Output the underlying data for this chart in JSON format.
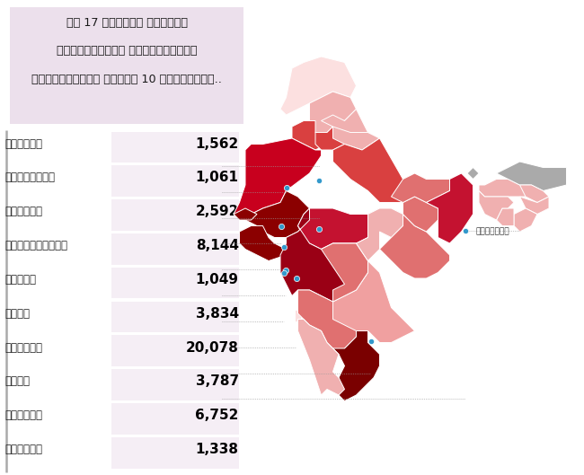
{
  "title_lines": [
    "మే 17 నాటికి దేశంలో",
    "అత్యధికంగా కరోనావైరస్",
    "వ్యాపించిన మొదటి 10 జిల్లాలు.."
  ],
  "districts": [
    {
      "name": "జైపూర్",
      "value": "1,562",
      "lat": 26.9,
      "lon": 75.8
    },
    {
      "name": "జోధ్పూర్",
      "value": "1,061",
      "lat": 26.3,
      "lon": 73.0
    },
    {
      "name": "ఇండోర్",
      "value": "2,592",
      "lat": 22.7,
      "lon": 75.8
    },
    {
      "name": "అహ్మదాబాద్",
      "value": "8,144",
      "lat": 23.0,
      "lon": 72.6
    },
    {
      "name": "సూరత్",
      "value": "1,049",
      "lat": 21.2,
      "lon": 72.8
    },
    {
      "name": "థాణే",
      "value": "3,834",
      "lat": 19.2,
      "lon": 72.97
    },
    {
      "name": "ముంబయి",
      "value": "20,078",
      "lat": 18.96,
      "lon": 72.82
    },
    {
      "name": "పుణే",
      "value": "3,787",
      "lat": 18.5,
      "lon": 73.85
    },
    {
      "name": "చెన్నై",
      "value": "6,752",
      "lat": 13.1,
      "lon": 80.25
    },
    {
      "name": "కోల్కత",
      "value": "1,338",
      "lat": 22.57,
      "lon": 88.36
    }
  ],
  "title_box_color": "#ece0ec",
  "bg_color": "#ffffff",
  "title_text_color": "#1a1a1a",
  "name_text_color": "#222222",
  "value_text_color": "#000000",
  "value_box_color": "#f0e8f0",
  "dot_color": "#3399cc",
  "kolkata_label": "కోల్కతా",
  "state_colors": {
    "Rajasthan": "#c8001e",
    "Gujarat": "#8b0000",
    "Maharashtra": "#9a0015",
    "Madhya Pradesh": "#c41230",
    "West Bengal": "#c41230",
    "Tamil Nadu": "#7a0000",
    "Uttar Pradesh": "#d94040",
    "Karnataka": "#e07070",
    "Andhra Pradesh": "#f0a0a0",
    "Telangana": "#e07070",
    "Odisha": "#e07070",
    "Bihar": "#e07070",
    "Jharkhand": "#e07070",
    "Punjab": "#d94040",
    "Haryana": "#d94040",
    "Himachal Pradesh": "#f0b0b0",
    "Uttarakhand": "#f0b0b0",
    "Chhattisgarh": "#f0b0b0",
    "Assam": "#f0b0b0",
    "Kerala": "#f0b0b0",
    "Jammu and Kashmir": "#fce0e0",
    "Ladakh": "#fce0e0",
    "Sikkim": "#aaaaaa",
    "Arunachal Pradesh": "#aaaaaa",
    "Mizoram": "#f0b0b0",
    "Manipur": "#f0b0b0",
    "Meghalaya": "#f0b0b0",
    "Nagaland": "#f0b0b0",
    "Tripura": "#f0b0b0",
    "Goa": "#fce0e0",
    "default": "#f0b0b0"
  }
}
